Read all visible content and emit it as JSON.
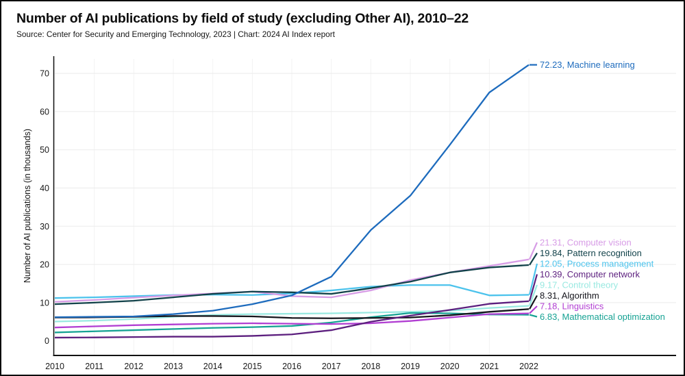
{
  "header": {
    "title": "Number of AI publications by field of study (excluding Other AI), 2010–22",
    "subtitle": "Source: Center for Security and Emerging Technology, 2023 | Chart: 2024 AI Index report"
  },
  "chart_data": {
    "type": "line",
    "title": "Number of AI publications by field of study (excluding Other AI), 2010–22",
    "subtitle": "Source: Center for Security and Emerging Technology, 2023 | Chart: 2024 AI Index report",
    "xlabel": "",
    "ylabel": "Number of AI publications (in thousands)",
    "x": [
      2010,
      2011,
      2012,
      2013,
      2014,
      2015,
      2016,
      2017,
      2018,
      2019,
      2020,
      2021,
      2022
    ],
    "x_tick_labels": [
      "2010",
      "2011",
      "2012",
      "2013",
      "2014",
      "2015",
      "2016",
      "2017",
      "2018",
      "2019",
      "2020",
      "2021",
      "2022"
    ],
    "yticks": [
      0,
      10,
      20,
      30,
      40,
      50,
      60,
      70
    ],
    "ylim": [
      0,
      74.5
    ],
    "grid": true,
    "legend_position": "right-end-labels",
    "series": [
      {
        "name": "Machine learning",
        "end_value": 72.23,
        "end_label": "72.23, Machine learning",
        "color": "#1d6bbd",
        "values": [
          6.2,
          6.3,
          6.4,
          7.0,
          7.9,
          9.6,
          11.9,
          16.8,
          29.0,
          38.0,
          51.3,
          65.0,
          72.23
        ]
      },
      {
        "name": "Computer vision",
        "end_value": 21.31,
        "end_label": "21.31, Computer vision",
        "color": "#d79ce6",
        "values": [
          10.2,
          10.7,
          11.3,
          11.9,
          12.4,
          12.9,
          11.7,
          11.4,
          13.2,
          15.9,
          17.9,
          19.6,
          21.31
        ]
      },
      {
        "name": "Pattern recognition",
        "end_value": 19.84,
        "end_label": "19.84, Pattern recognition",
        "color": "#12424a",
        "values": [
          9.6,
          10.0,
          10.5,
          11.4,
          12.3,
          12.9,
          12.7,
          12.3,
          13.8,
          15.5,
          17.9,
          19.2,
          19.84
        ]
      },
      {
        "name": "Process management",
        "end_value": 12.05,
        "end_label": "12.05, Process management",
        "color": "#4cc3ec",
        "values": [
          11.2,
          11.4,
          11.7,
          12.0,
          12.1,
          12.0,
          12.4,
          13.2,
          14.2,
          14.6,
          14.6,
          11.9,
          12.05
        ]
      },
      {
        "name": "Computer network",
        "end_value": 10.39,
        "end_label": "10.39, Computer network",
        "color": "#5c1f7e",
        "values": [
          0.85,
          0.9,
          1.0,
          1.1,
          1.1,
          1.3,
          1.7,
          2.8,
          5.0,
          6.6,
          8.1,
          9.7,
          10.39
        ]
      },
      {
        "name": "Control theory",
        "end_value": 9.17,
        "end_label": "9.17, Control theory",
        "color": "#99e9e1",
        "values": [
          5.05,
          5.3,
          5.7,
          6.3,
          6.8,
          7.0,
          7.1,
          7.2,
          7.4,
          7.6,
          7.9,
          8.6,
          9.17
        ]
      },
      {
        "name": "Algorithm",
        "end_value": 8.31,
        "end_label": "8.31, Algorithm",
        "color": "#15151c",
        "values": [
          6.1,
          6.15,
          6.3,
          6.5,
          6.5,
          6.4,
          6.0,
          5.9,
          6.0,
          6.1,
          6.7,
          7.6,
          8.31
        ]
      },
      {
        "name": "Linguistics",
        "end_value": 7.18,
        "end_label": "7.18, Linguistics",
        "color": "#b13ed2",
        "values": [
          3.5,
          3.8,
          4.1,
          4.3,
          4.5,
          4.6,
          4.5,
          4.4,
          4.6,
          5.2,
          6.1,
          7.0,
          7.18
        ]
      },
      {
        "name": "Mathematical optimization",
        "end_value": 6.83,
        "end_label": "6.83, Mathematical optimization",
        "color": "#16a293",
        "values": [
          2.2,
          2.5,
          2.8,
          3.1,
          3.4,
          3.6,
          3.9,
          4.8,
          6.2,
          7.3,
          7.2,
          6.9,
          6.83
        ]
      }
    ]
  }
}
